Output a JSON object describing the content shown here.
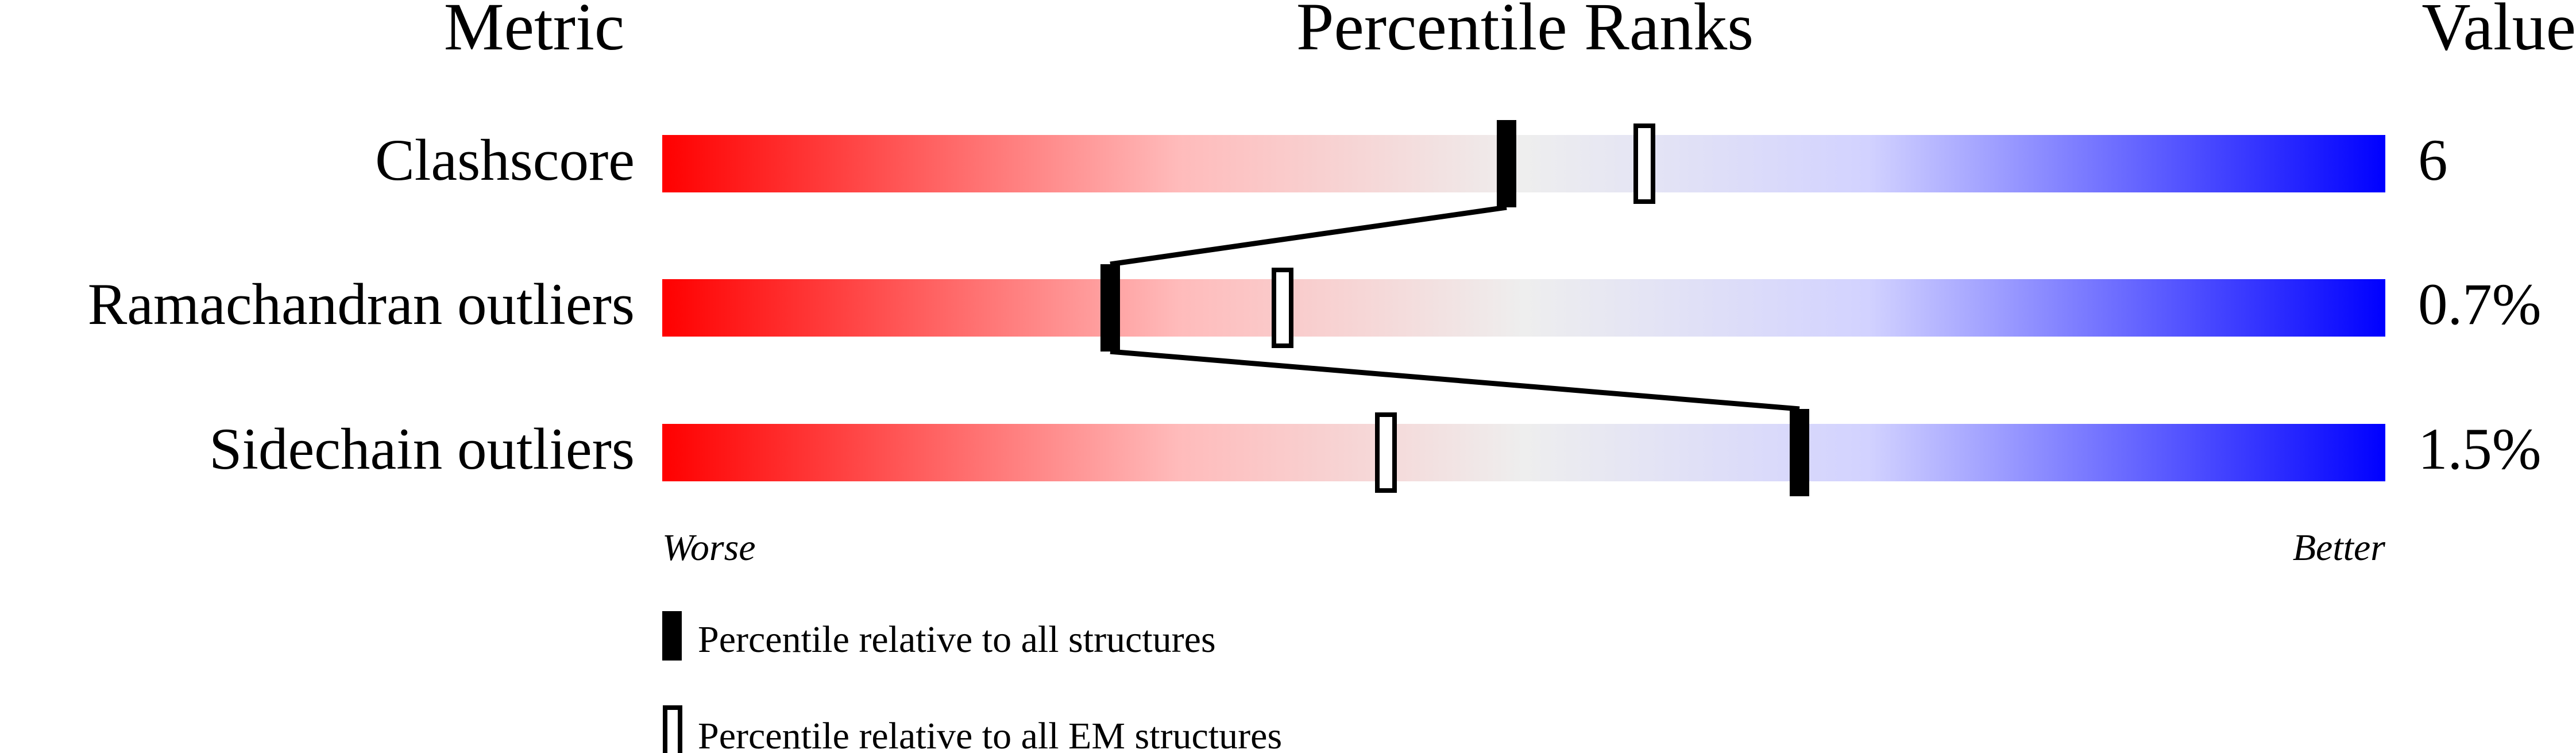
{
  "chart_data": {
    "type": "percentile-slider",
    "headers": {
      "metric": "Metric",
      "ranks": "Percentile Ranks",
      "value": "Value"
    },
    "axis": {
      "min": 0,
      "max": 100,
      "left_label": "Worse",
      "right_label": "Better"
    },
    "colors": {
      "worse": "#ff0000",
      "middle": "#eeeeee",
      "better": "#0000ff",
      "marker": "#000000"
    },
    "metrics": [
      {
        "name": "Clashscore",
        "value": "6",
        "percentile_all": 49,
        "percentile_em": 57
      },
      {
        "name": "Ramachandran outliers",
        "value": "0.7%",
        "percentile_all": 26,
        "percentile_em": 36
      },
      {
        "name": "Sidechain outliers",
        "value": "1.5%",
        "percentile_all": 66,
        "percentile_em": 42
      }
    ],
    "legend": [
      {
        "marker": "filled",
        "label": "Percentile relative to all structures"
      },
      {
        "marker": "hollow",
        "label": "Percentile relative to all EM structures"
      }
    ]
  }
}
